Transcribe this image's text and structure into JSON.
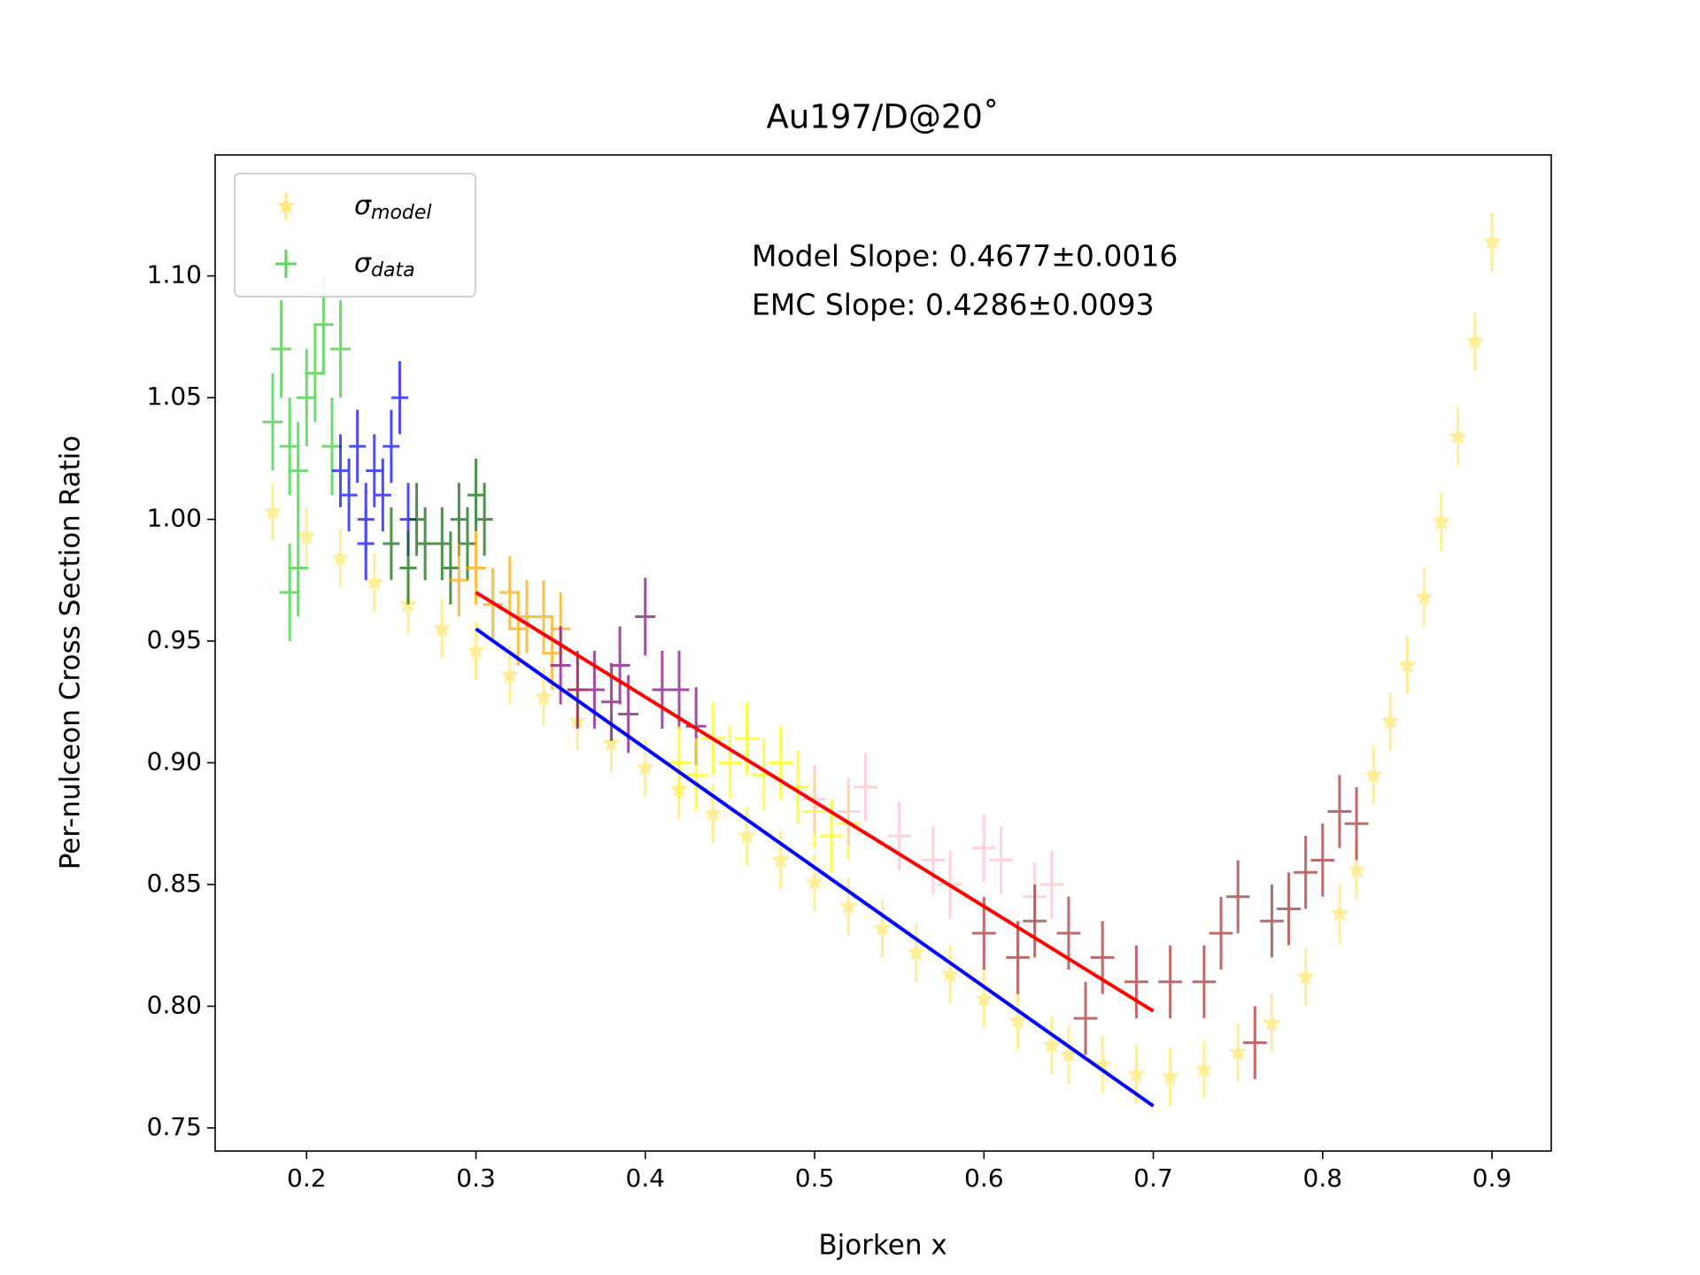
{
  "chart_data": {
    "type": "errorbar-scatter",
    "title": "Au197/D@20˚",
    "xlabel": "Bjorken x",
    "ylabel": "Per-nulceon Cross Section Ratio",
    "xlim": [
      0.146,
      0.935
    ],
    "ylim": [
      0.7405,
      1.1497
    ],
    "xticks": [
      0.2,
      0.3,
      0.4,
      0.5,
      0.6,
      0.7,
      0.8,
      0.9
    ],
    "yticks": [
      0.75,
      {
        "value": 0.8,
        "label": "0.80"
      },
      0.85,
      {
        "value": 0.9,
        "label": "0.90"
      },
      0.95,
      {
        "value": 1.0,
        "label": "1.00"
      },
      1.05,
      {
        "value": 1.1,
        "label": "1.10"
      }
    ],
    "annotations": [
      "Model Slope: 0.4677±0.0016",
      "EMC Slope: 0.4286±0.0093"
    ],
    "legend": {
      "loc": "upper left",
      "entries": [
        {
          "symbol": "σ",
          "subscript": "model",
          "color": "#ffd700"
        },
        {
          "symbol": "σ",
          "subscript": "data",
          "color": "#32cd32"
        }
      ]
    },
    "series": [
      {
        "marker": "star",
        "color": "#ffd700",
        "yerr": 0.012,
        "x": [
          0.18,
          0.2,
          0.22,
          0.24,
          0.26,
          0.28,
          0.3,
          0.32,
          0.34,
          0.36,
          0.38,
          0.4,
          0.42,
          0.44,
          0.46,
          0.48,
          0.5,
          0.52,
          0.54,
          0.56,
          0.58,
          0.6,
          0.62,
          0.64,
          0.65,
          0.67,
          0.69,
          0.71,
          0.73,
          0.75,
          0.77,
          0.79,
          0.81,
          0.82,
          0.83,
          0.84,
          0.85,
          0.86,
          0.87,
          0.88,
          0.89,
          0.9
        ],
        "values": [
          1.003,
          0.993,
          0.984,
          0.974,
          0.965,
          0.955,
          0.946,
          0.936,
          0.927,
          0.917,
          0.908,
          0.898,
          0.889,
          0.879,
          0.87,
          0.86,
          0.851,
          0.841,
          0.832,
          0.822,
          0.813,
          0.803,
          0.794,
          0.784,
          0.78,
          0.776,
          0.772,
          0.771,
          0.774,
          0.781,
          0.793,
          0.812,
          0.838,
          0.856,
          0.895,
          0.917,
          0.94,
          0.968,
          0.999,
          1.034,
          1.073,
          1.114
        ]
      },
      {
        "marker": "cross",
        "color": "#32cd32",
        "xerr": 0.006,
        "yerr": 0.02,
        "x": [
          0.18,
          0.185,
          0.19,
          0.195,
          0.2,
          0.205,
          0.21,
          0.215,
          0.22,
          0.195,
          0.19
        ],
        "values": [
          1.04,
          1.07,
          1.03,
          1.02,
          1.05,
          1.06,
          1.08,
          1.03,
          1.07,
          0.98,
          0.97
        ]
      },
      {
        "marker": "cross",
        "color": "#0000ff",
        "xerr": 0.005,
        "yerr": 0.015,
        "x": [
          0.22,
          0.225,
          0.23,
          0.235,
          0.24,
          0.245,
          0.25,
          0.255,
          0.26,
          0.235
        ],
        "values": [
          1.02,
          1.01,
          1.03,
          1.0,
          1.02,
          1.01,
          1.03,
          1.05,
          1.0,
          0.99
        ]
      },
      {
        "marker": "cross",
        "color": "#006400",
        "xerr": 0.005,
        "yerr": 0.015,
        "x": [
          0.25,
          0.26,
          0.265,
          0.27,
          0.28,
          0.285,
          0.29,
          0.295,
          0.3,
          0.305
        ],
        "values": [
          0.99,
          0.98,
          1.0,
          0.99,
          0.99,
          0.98,
          1.0,
          0.99,
          1.01,
          1.0
        ]
      },
      {
        "marker": "cross",
        "color": "#ffa500",
        "xerr": 0.006,
        "yerr": 0.015,
        "x": [
          0.29,
          0.3,
          0.31,
          0.32,
          0.325,
          0.33,
          0.34,
          0.345,
          0.35,
          0.36
        ],
        "values": [
          0.975,
          0.98,
          0.965,
          0.97,
          0.955,
          0.96,
          0.96,
          0.945,
          0.955,
          0.93
        ]
      },
      {
        "marker": "cross",
        "color": "#800080",
        "xerr": 0.006,
        "yerr": 0.016,
        "x": [
          0.35,
          0.36,
          0.37,
          0.38,
          0.385,
          0.39,
          0.4,
          0.41,
          0.42,
          0.43
        ],
        "values": [
          0.94,
          0.93,
          0.93,
          0.925,
          0.94,
          0.92,
          0.96,
          0.93,
          0.93,
          0.915
        ]
      },
      {
        "marker": "cross",
        "color": "#ffff00",
        "xerr": 0.007,
        "yerr": 0.015,
        "x": [
          0.42,
          0.43,
          0.44,
          0.45,
          0.46,
          0.47,
          0.48,
          0.49,
          0.5,
          0.51,
          0.52
        ],
        "values": [
          0.9,
          0.895,
          0.91,
          0.9,
          0.91,
          0.895,
          0.9,
          0.89,
          0.88,
          0.87,
          0.875
        ]
      },
      {
        "marker": "cross",
        "color": "#ffc0cb",
        "xerr": 0.007,
        "yerr": 0.014,
        "x": [
          0.5,
          0.52,
          0.53,
          0.55,
          0.57,
          0.58,
          0.6,
          0.61,
          0.63,
          0.64
        ],
        "values": [
          0.885,
          0.88,
          0.89,
          0.87,
          0.86,
          0.85,
          0.865,
          0.86,
          0.845,
          0.85
        ]
      },
      {
        "marker": "cross",
        "color": "#a52a2a",
        "xerr": 0.007,
        "yerr": 0.015,
        "x": [
          0.6,
          0.62,
          0.63,
          0.65,
          0.66,
          0.67,
          0.69,
          0.71,
          0.73,
          0.74,
          0.75,
          0.76,
          0.77,
          0.78,
          0.79,
          0.8,
          0.81,
          0.82
        ],
        "values": [
          0.83,
          0.82,
          0.835,
          0.83,
          0.795,
          0.82,
          0.81,
          0.81,
          0.81,
          0.83,
          0.845,
          0.785,
          0.835,
          0.84,
          0.855,
          0.86,
          0.88,
          0.875
        ]
      }
    ],
    "lines": [
      {
        "color": "#ff0000",
        "x": [
          0.3,
          0.7
        ],
        "values": [
          0.97,
          0.798
        ]
      },
      {
        "color": "#0000ff",
        "x": [
          0.3,
          0.7
        ],
        "values": [
          0.955,
          0.759
        ]
      }
    ]
  }
}
